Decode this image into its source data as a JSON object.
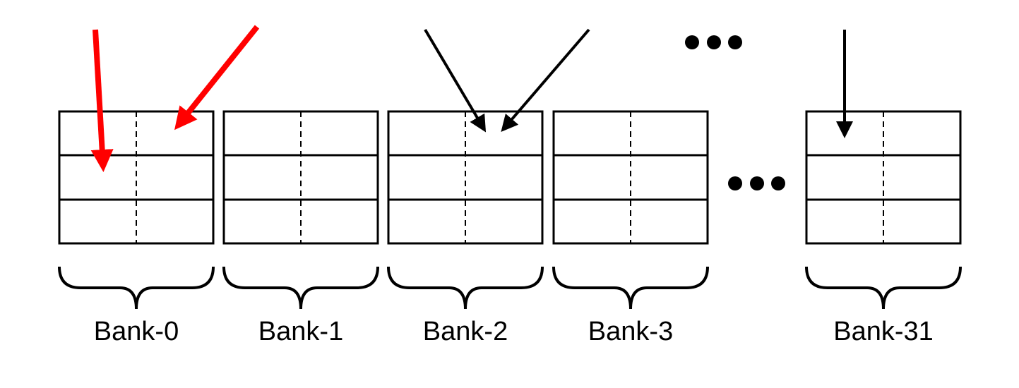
{
  "banks": [
    {
      "label": "Bank-0"
    },
    {
      "label": "Bank-1"
    },
    {
      "label": "Bank-2"
    },
    {
      "label": "Bank-3"
    },
    {
      "label": "Bank-31"
    }
  ],
  "ellipsis": "•••",
  "colors": {
    "conflict_arrow": "#ff0000",
    "normal_arrow": "#000000",
    "outline": "#000000",
    "background": "#ffffff"
  }
}
